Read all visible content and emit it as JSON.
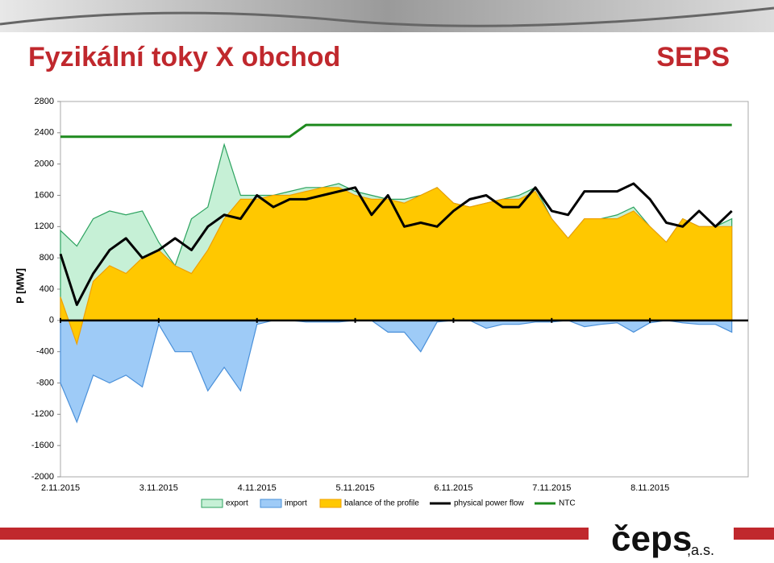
{
  "header": {
    "title": "Fyzikální toky X obchod",
    "brand": "SEPS"
  },
  "footer": {
    "logo": "čeps",
    "logo_suffix": ",a.s."
  },
  "chart_data": {
    "type": "area",
    "y_label": "P [MW]",
    "categories": [
      "2.11.2015",
      null,
      null,
      null,
      null,
      null,
      "3.11.2015",
      null,
      null,
      null,
      null,
      null,
      "4.11.2015",
      null,
      null,
      null,
      null,
      null,
      "5.11.2015",
      null,
      null,
      null,
      null,
      null,
      "6.11.2015",
      null,
      null,
      null,
      null,
      null,
      "7.11.2015",
      null,
      null,
      null,
      null,
      null,
      "8.11.2015",
      null,
      null,
      null,
      null,
      null
    ],
    "ylim": [
      -2000,
      2800
    ],
    "yticks": [
      -2000,
      -1600,
      -1200,
      -800,
      -400,
      0,
      400,
      800,
      1200,
      1600,
      2000,
      2400,
      2800
    ],
    "series": [
      {
        "name": "export",
        "type": "area",
        "color": "#c6f0d6",
        "edge": "#2ca25f",
        "values": [
          1150,
          950,
          1300,
          1400,
          1350,
          1400,
          1000,
          700,
          1300,
          1450,
          2250,
          1600,
          1600,
          1600,
          1650,
          1700,
          1700,
          1750,
          1650,
          1600,
          1550,
          1550,
          1600,
          1700,
          1500,
          1450,
          1500,
          1550,
          1600,
          1700,
          1300,
          1050,
          1300,
          1300,
          1350,
          1450,
          1200,
          1000,
          1300,
          1200,
          1200,
          1300
        ]
      },
      {
        "name": "import",
        "type": "area",
        "color": "#9ecbf7",
        "edge": "#4a90d9",
        "values": [
          -800,
          -1300,
          -700,
          -800,
          -700,
          -850,
          -50,
          -400,
          -400,
          -900,
          -600,
          -900,
          -50,
          0,
          0,
          -20,
          -20,
          -20,
          0,
          0,
          -150,
          -150,
          -400,
          -20,
          0,
          0,
          -100,
          -50,
          -50,
          -20,
          -20,
          0,
          -80,
          -50,
          -30,
          -150,
          -30,
          0,
          -30,
          -50,
          -50,
          -150
        ]
      },
      {
        "name": "balance of the profile",
        "type": "area",
        "color": "#ffc800",
        "edge": "#f0a000",
        "values": [
          300,
          -300,
          500,
          700,
          600,
          800,
          900,
          700,
          600,
          900,
          1300,
          1550,
          1550,
          1600,
          1600,
          1650,
          1700,
          1700,
          1600,
          1550,
          1550,
          1500,
          1600,
          1700,
          1500,
          1450,
          1500,
          1550,
          1550,
          1650,
          1300,
          1050,
          1300,
          1300,
          1300,
          1400,
          1200,
          1000,
          1300,
          1200,
          1200,
          1200
        ]
      },
      {
        "name": "physical power flow",
        "type": "line",
        "color": "#000000",
        "values": [
          850,
          200,
          600,
          900,
          1050,
          800,
          900,
          1050,
          900,
          1200,
          1350,
          1300,
          1600,
          1450,
          1550,
          1550,
          1600,
          1650,
          1700,
          1350,
          1600,
          1200,
          1250,
          1200,
          1400,
          1550,
          1600,
          1450,
          1450,
          1700,
          1400,
          1350,
          1650,
          1650,
          1650,
          1750,
          1550,
          1250,
          1200,
          1400,
          1200,
          1400
        ]
      },
      {
        "name": "NTC",
        "type": "line",
        "color": "#1e8a1e",
        "values": [
          2350,
          2350,
          2350,
          2350,
          2350,
          2350,
          2350,
          2350,
          2350,
          2350,
          2350,
          2350,
          2350,
          2350,
          2350,
          2500,
          2500,
          2500,
          2500,
          2500,
          2500,
          2500,
          2500,
          2500,
          2500,
          2500,
          2500,
          2500,
          2500,
          2500,
          2500,
          2500,
          2500,
          2500,
          2500,
          2500,
          2500,
          2500,
          2500,
          2500,
          2500,
          2500
        ]
      }
    ]
  }
}
